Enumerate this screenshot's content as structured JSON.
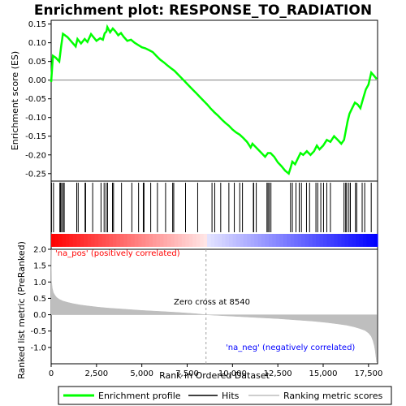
{
  "chart_data": {
    "type": "line",
    "title": "Enrichment plot: RESPONSE_TO_RADIATION",
    "top_panel": {
      "ylabel": "Enrichment score (ES)",
      "ylim": [
        -0.27,
        0.16
      ],
      "yticks": [
        0.15,
        0.1,
        0.05,
        0.0,
        -0.05,
        -0.1,
        -0.15,
        -0.2,
        -0.25
      ],
      "ytick_labels": [
        "0.15",
        "0.10",
        "0.05",
        "0.00",
        "-0.05",
        "-0.10",
        "-0.15",
        "-0.20",
        "-0.25"
      ],
      "series": [
        {
          "name": "Enrichment profile",
          "color": "#00ff00",
          "x": [
            0,
            100,
            250,
            450,
            550,
            650,
            900,
            1350,
            1450,
            1650,
            1850,
            2000,
            2200,
            2500,
            2700,
            2850,
            2950,
            3050,
            3100,
            3250,
            3400,
            3550,
            3700,
            3850,
            4000,
            4200,
            4400,
            4600,
            4800,
            5000,
            5200,
            5400,
            5600,
            5800,
            6000,
            6200,
            6400,
            6600,
            6800,
            7000,
            7200,
            7400,
            7600,
            7800,
            8000,
            8200,
            8400,
            8600,
            8800,
            9000,
            9200,
            9400,
            9600,
            9800,
            10000,
            10200,
            10400,
            10600,
            10800,
            11000,
            11100,
            11200,
            11400,
            11600,
            11800,
            11950,
            12100,
            12300,
            12500,
            12700,
            12900,
            13100,
            13200,
            13300,
            13450,
            13600,
            13750,
            13900,
            14100,
            14300,
            14500,
            14650,
            14800,
            15000,
            15200,
            15400,
            15600,
            15800,
            16000,
            16150,
            16250,
            16350,
            16450,
            16600,
            16750,
            16900,
            17050,
            17200,
            17350,
            17500,
            17650,
            17800,
            17950
          ],
          "y": [
            -0.005,
            0.065,
            0.06,
            0.05,
            0.09,
            0.124,
            0.115,
            0.09,
            0.11,
            0.098,
            0.11,
            0.102,
            0.123,
            0.105,
            0.112,
            0.108,
            0.125,
            0.13,
            0.142,
            0.128,
            0.138,
            0.13,
            0.12,
            0.126,
            0.116,
            0.105,
            0.108,
            0.1,
            0.094,
            0.088,
            0.085,
            0.08,
            0.075,
            0.065,
            0.055,
            0.048,
            0.04,
            0.032,
            0.025,
            0.015,
            0.005,
            -0.005,
            -0.015,
            -0.025,
            -0.035,
            -0.045,
            -0.055,
            -0.065,
            -0.076,
            -0.086,
            -0.095,
            -0.105,
            -0.114,
            -0.122,
            -0.132,
            -0.14,
            -0.146,
            -0.155,
            -0.165,
            -0.18,
            -0.17,
            -0.175,
            -0.185,
            -0.195,
            -0.205,
            -0.195,
            -0.195,
            -0.205,
            -0.22,
            -0.23,
            -0.242,
            -0.25,
            -0.235,
            -0.218,
            -0.225,
            -0.21,
            -0.195,
            -0.2,
            -0.19,
            -0.2,
            -0.19,
            -0.175,
            -0.185,
            -0.175,
            -0.16,
            -0.165,
            -0.15,
            -0.16,
            -0.17,
            -0.16,
            -0.135,
            -0.11,
            -0.09,
            -0.075,
            -0.06,
            -0.065,
            -0.075,
            -0.05,
            -0.025,
            -0.012,
            0.02,
            0.012,
            0.003
          ]
        }
      ]
    },
    "hits_panel": {
      "series_name": "Hits",
      "color": "#000000",
      "positions": [
        20,
        130,
        480,
        520,
        580,
        660,
        720,
        1410,
        1490,
        1870,
        1900,
        2290,
        2750,
        2920,
        3030,
        3110,
        3380,
        3440,
        3880,
        4450,
        4820,
        5080,
        5120,
        5490,
        5860,
        6310,
        6700,
        6760,
        7410,
        8080,
        8870,
        9020,
        9350,
        9800,
        10100,
        10400,
        10550,
        11150,
        11170,
        11310,
        11900,
        11960,
        12030,
        12120,
        13200,
        13300,
        13500,
        13680,
        13800,
        14080,
        14250,
        14600,
        14700,
        14870,
        15020,
        15200,
        15400,
        16150,
        16240,
        16300,
        16420,
        16500,
        16780,
        16850,
        17150,
        17290,
        17650
      ]
    },
    "ranking_panel": {
      "ylabel": "Ranked list metric (PreRanked)",
      "xlabel": "Rank in Ordered Dataset",
      "ylim": [
        -1.5,
        2.0
      ],
      "yticks": [
        2.0,
        1.5,
        1.0,
        0.5,
        0.0,
        -0.5,
        -1.0
      ],
      "ytick_labels": [
        "2.0",
        "1.5",
        "1.0",
        "0.5",
        "0.0",
        "-0.5",
        "-1.0"
      ],
      "series_name": "Ranking metric scores",
      "color": "#bebebe",
      "x": [
        0,
        20,
        60,
        120,
        200,
        300,
        450,
        650,
        900,
        1200,
        1600,
        2000,
        2600,
        3200,
        4000,
        5000,
        6000,
        7000,
        8000,
        8540,
        9500,
        10500,
        11500,
        12500,
        13500,
        14500,
        15200,
        15800,
        16300,
        16700,
        17000,
        17300,
        17500,
        17650,
        17750,
        17820,
        17870,
        17900,
        17950
      ],
      "values": [
        2.0,
        1.05,
        0.82,
        0.68,
        0.6,
        0.53,
        0.47,
        0.42,
        0.38,
        0.34,
        0.3,
        0.27,
        0.23,
        0.2,
        0.17,
        0.13,
        0.1,
        0.07,
        0.03,
        0.0,
        -0.03,
        -0.06,
        -0.09,
        -0.12,
        -0.16,
        -0.2,
        -0.24,
        -0.28,
        -0.32,
        -0.37,
        -0.42,
        -0.48,
        -0.56,
        -0.66,
        -0.8,
        -0.95,
        -1.1,
        -1.25,
        -1.45
      ],
      "zero_cross_label": "Zero cross at 8540",
      "zero_cross": 8540,
      "pos_label": "'na_pos' (positively correlated)",
      "neg_label": "'na_neg' (negatively correlated)",
      "pos_color": "#ff0000",
      "neg_color": "#0000ff"
    },
    "x_axis": {
      "xlim": [
        0,
        18000
      ],
      "xticks": [
        0,
        2500,
        5000,
        7500,
        10000,
        12500,
        15000,
        17500
      ],
      "xtick_labels": [
        "0",
        "2,500",
        "5,000",
        "7,500",
        "10,000",
        "12,500",
        "15,000",
        "17,500"
      ]
    },
    "legend": {
      "placement": "bottom",
      "entries": [
        {
          "label": "Enrichment profile",
          "color": "#00ff00"
        },
        {
          "label": "Hits",
          "color": "#000000"
        },
        {
          "label": "Ranking metric scores",
          "color": "#bebebe"
        }
      ]
    }
  }
}
